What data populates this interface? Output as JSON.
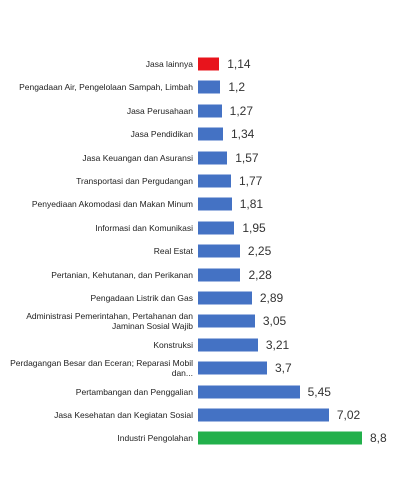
{
  "chart_data": {
    "type": "hbar",
    "categories": [
      "Jasa lainnya",
      "Pengadaan Air, Pengelolaan Sampah, Limbah",
      "Jasa Perusahaan",
      "Jasa Pendidikan",
      "Jasa Keuangan dan Asuransi",
      "Transportasi dan Pergudangan",
      "Penyediaan Akomodasi dan Makan Minum",
      "Informasi dan Komunikasi",
      "Real Estat",
      "Pertanian, Kehutanan, dan Perikanan",
      "Pengadaan Listrik dan Gas",
      "Administrasi Pemerintahan, Pertahanan dan Jaminan Sosial Wajib",
      "Konstruksi",
      "Perdagangan Besar dan Eceran; Reparasi Mobil dan...",
      "Pertambangan dan Penggalian",
      "Jasa Kesehatan dan Kegiatan Sosial",
      "Industri Pengolahan"
    ],
    "values": [
      1.14,
      1.2,
      1.27,
      1.34,
      1.57,
      1.77,
      1.81,
      1.95,
      2.25,
      2.28,
      2.89,
      3.05,
      3.21,
      3.7,
      5.45,
      7.02,
      8.8
    ],
    "value_labels": [
      "1,14",
      "1,2",
      "1,27",
      "1,34",
      "1,57",
      "1,77",
      "1,81",
      "1,95",
      "2,25",
      "2,28",
      "2,89",
      "3,05",
      "3,21",
      "3,7",
      "5,45",
      "7,02",
      "8,8"
    ],
    "colors": [
      "#e8141c",
      "#4472c4",
      "#4472c4",
      "#4472c4",
      "#4472c4",
      "#4472c4",
      "#4472c4",
      "#4472c4",
      "#4472c4",
      "#4472c4",
      "#4472c4",
      "#4472c4",
      "#4472c4",
      "#4472c4",
      "#4472c4",
      "#4472c4",
      "#22b04b"
    ]
  }
}
